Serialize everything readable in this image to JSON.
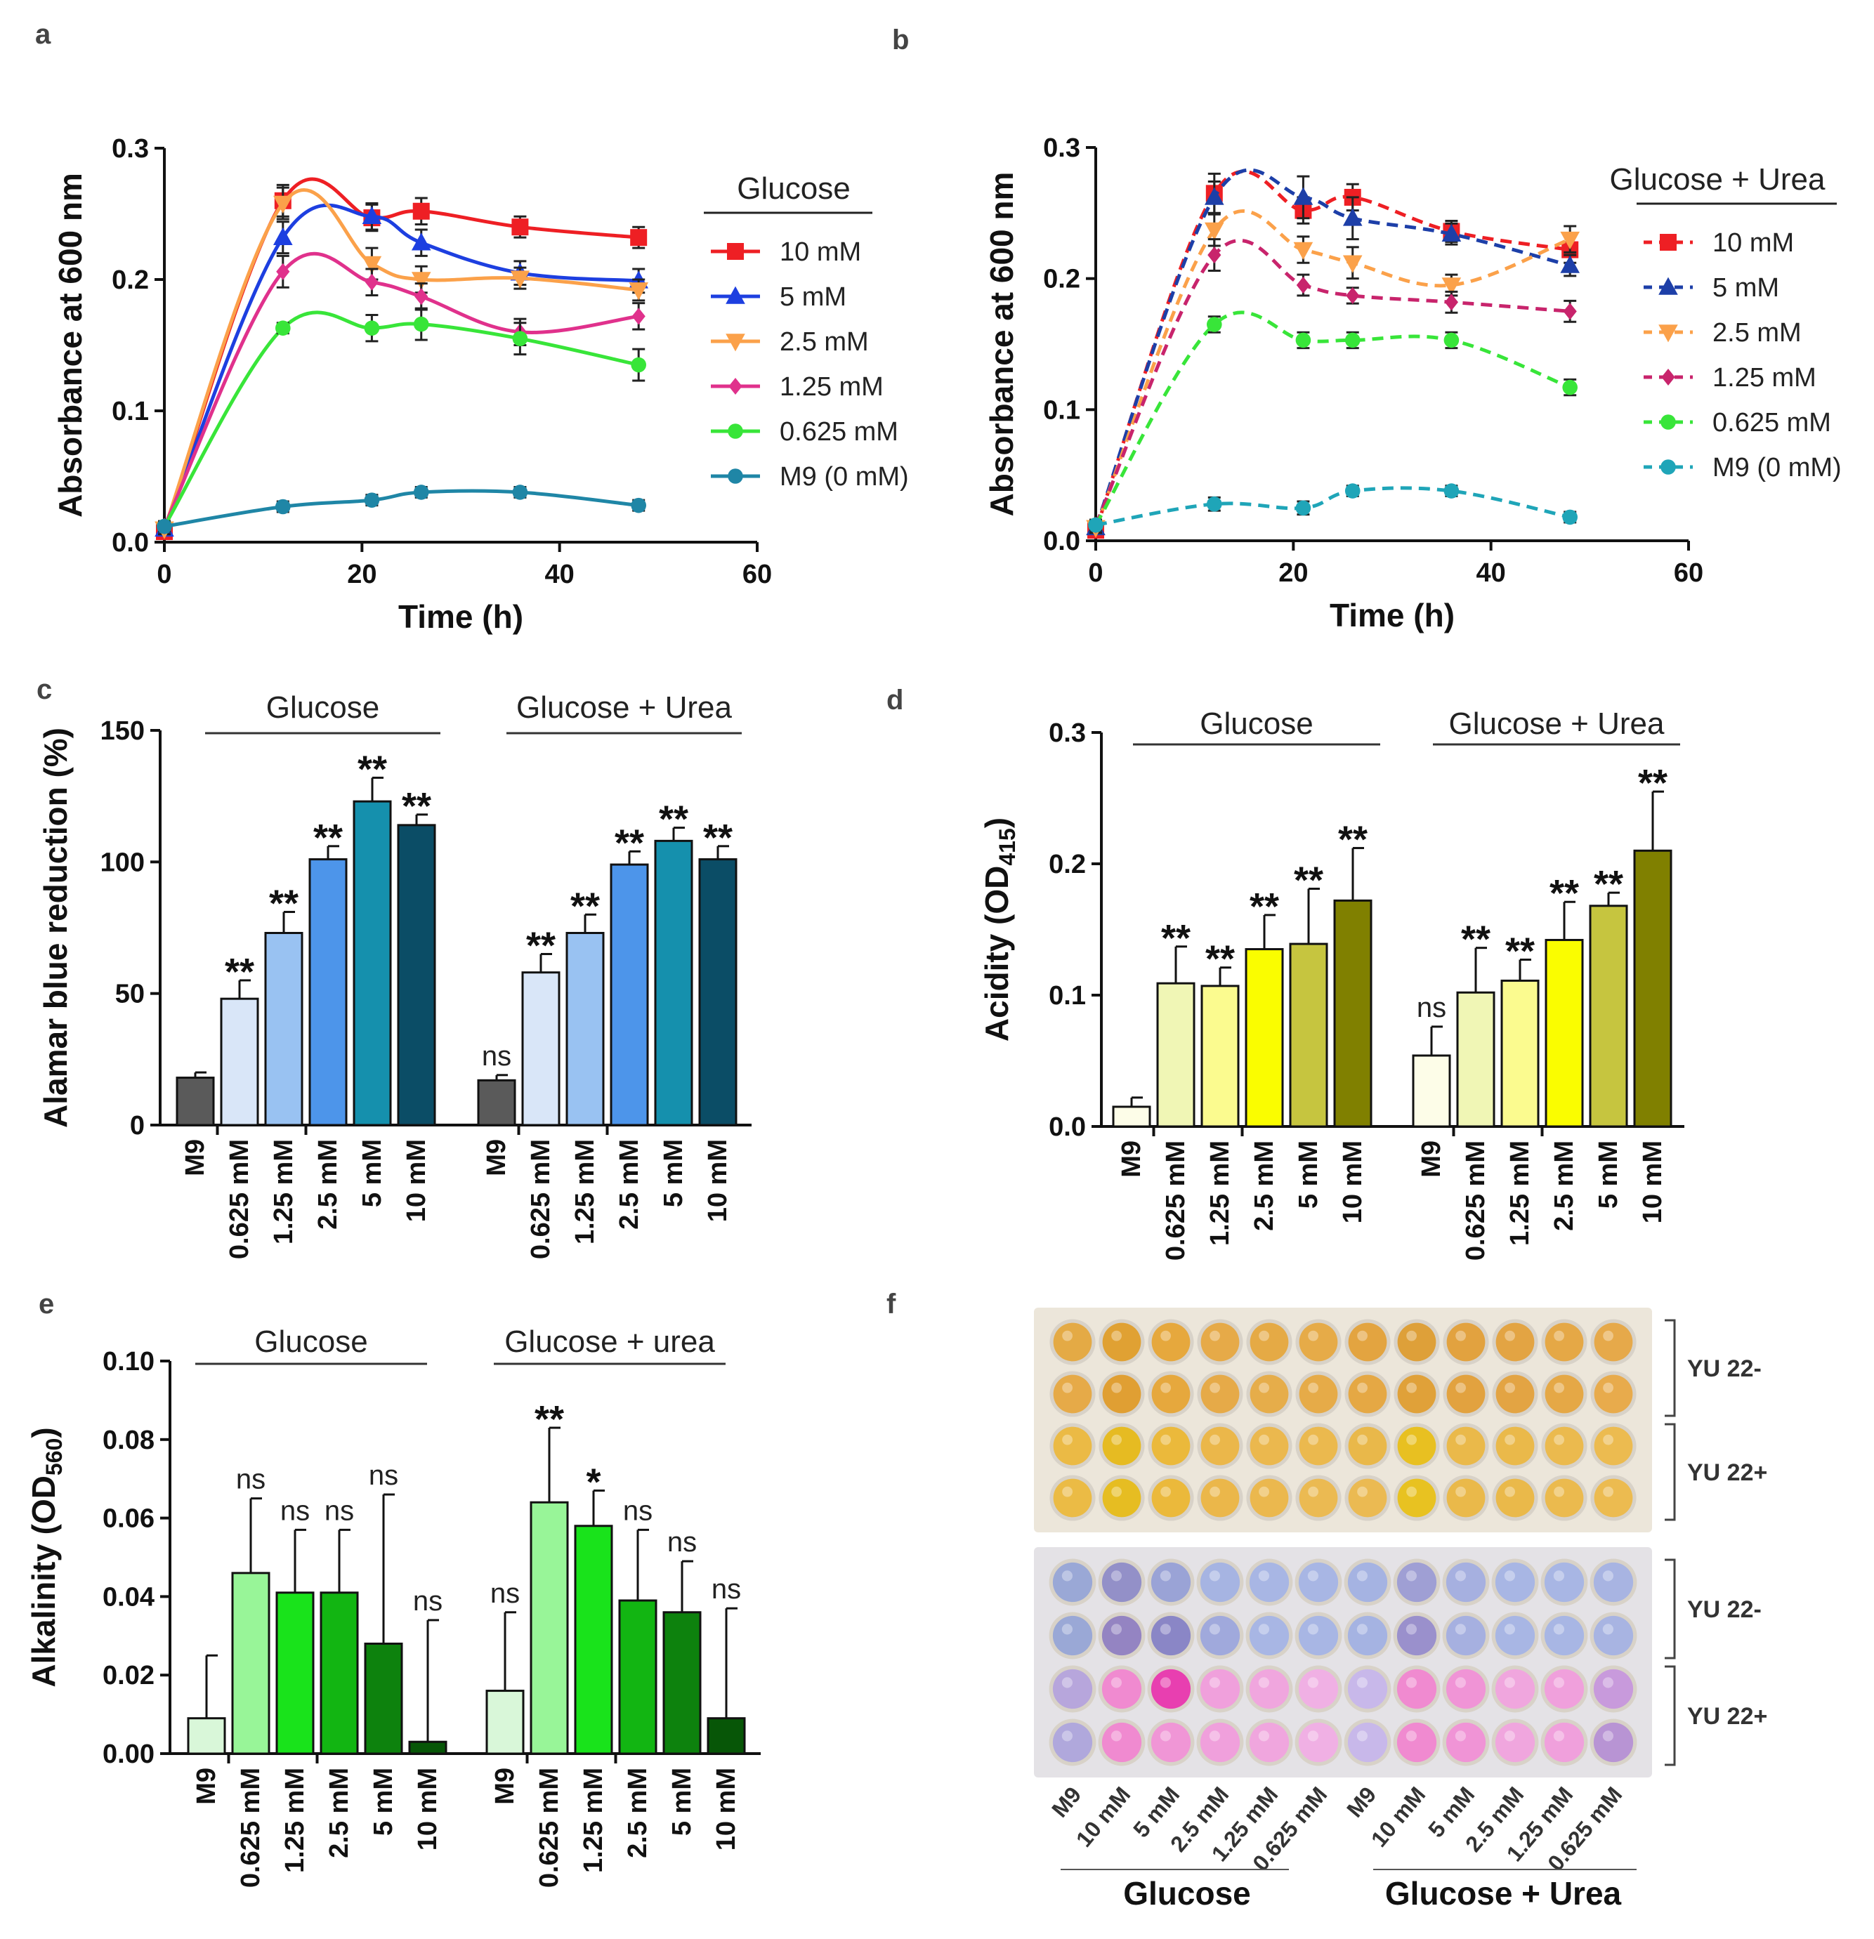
{
  "panel_letters": {
    "a": "a",
    "b": "b",
    "c": "c",
    "d": "d",
    "e": "e",
    "f": "f"
  },
  "colors": {
    "lines": {
      "10 mM": "#ee1f24",
      "5 mM": "#1d3fe0",
      "2.5 mM": "#fba14a",
      "1.25 mM": "#e0318c",
      "0.625 mM": "#38e539",
      "M9 (0 mM)": "#1f86a6"
    },
    "linesB": {
      "10 mM": "#ee1f24",
      "5 mM": "#1d3fa8",
      "2.5 mM": "#fba14a",
      "1.25 mM": "#c8246c",
      "0.625 mM": "#38e539",
      "M9 (0 mM)": "#1fa5b8"
    },
    "barsC": [
      "#5a5a5a",
      "#d9e6f8",
      "#99c2f2",
      "#4d95ea",
      "#1590ad",
      "#0b4d66"
    ],
    "barsD": [
      "#fdfde8",
      "#f0f6b5",
      "#fbfb8f",
      "#fafd00",
      "#c6c53f",
      "#808000"
    ],
    "barsE": [
      "#d9f7d9",
      "#98f598",
      "#19e31b",
      "#12b512",
      "#0d820d",
      "#075607"
    ]
  },
  "chart_data": [
    {
      "id": "a",
      "type": "line",
      "ylabel": "Absorbance at 600 nm",
      "xlabel": "Time (h)",
      "xlim": [
        0,
        60
      ],
      "ylim": [
        0,
        0.3
      ],
      "xticks": [
        "0",
        "20",
        "40",
        "60"
      ],
      "yticks": [
        "0.0",
        "0.1",
        "0.2",
        "0.3"
      ],
      "legend_title": "Glucose",
      "line_style": "solid",
      "x": [
        0,
        12,
        21,
        26,
        36,
        48
      ],
      "series": [
        {
          "name": "10 mM",
          "marker": "square",
          "values": [
            0.008,
            0.26,
            0.247,
            0.252,
            0.24,
            0.232
          ],
          "errors": [
            0.004,
            0.012,
            0.01,
            0.01,
            0.008,
            0.008
          ]
        },
        {
          "name": "5 mM",
          "marker": "triangle",
          "values": [
            0.01,
            0.232,
            0.248,
            0.228,
            0.205,
            0.199
          ],
          "errors": [
            0.004,
            0.012,
            0.01,
            0.01,
            0.009,
            0.009
          ]
        },
        {
          "name": "2.5 mM",
          "marker": "triangle-down",
          "values": [
            0.01,
            0.258,
            0.212,
            0.2,
            0.201,
            0.192
          ],
          "errors": [
            0.004,
            0.012,
            0.012,
            0.01,
            0.008,
            0.008
          ]
        },
        {
          "name": "1.25 mM",
          "marker": "diamond",
          "values": [
            0.012,
            0.206,
            0.198,
            0.187,
            0.16,
            0.172
          ],
          "errors": [
            0.004,
            0.012,
            0.01,
            0.01,
            0.01,
            0.01
          ]
        },
        {
          "name": "0.625 mM",
          "marker": "circle",
          "values": [
            0.012,
            0.163,
            0.163,
            0.166,
            0.155,
            0.135
          ],
          "errors": [
            0.004,
            0.004,
            0.01,
            0.012,
            0.012,
            0.012
          ]
        },
        {
          "name": "M9 (0 mM)",
          "marker": "circle",
          "values": [
            0.012,
            0.027,
            0.032,
            0.038,
            0.038,
            0.028
          ],
          "errors": [
            0.003,
            0.004,
            0.004,
            0.004,
            0.004,
            0.004
          ]
        }
      ]
    },
    {
      "id": "b",
      "type": "line",
      "ylabel": "Absorbance at 600 nm",
      "xlabel": "Time (h)",
      "xlim": [
        0,
        60
      ],
      "ylim": [
        0,
        0.3
      ],
      "xticks": [
        "0",
        "20",
        "40",
        "60"
      ],
      "yticks": [
        "0.0",
        "0.1",
        "0.2",
        "0.3"
      ],
      "legend_title": "Glucose  + Urea",
      "line_style": "dashed",
      "x": [
        0,
        12,
        21,
        26,
        36,
        48
      ],
      "series": [
        {
          "name": "10 mM",
          "marker": "square",
          "values": [
            0.008,
            0.265,
            0.252,
            0.262,
            0.236,
            0.222
          ],
          "errors": [
            0.004,
            0.015,
            0.01,
            0.01,
            0.008,
            0.01
          ]
        },
        {
          "name": "5 mM",
          "marker": "triangle",
          "values": [
            0.01,
            0.262,
            0.262,
            0.246,
            0.234,
            0.21
          ],
          "errors": [
            0.004,
            0.012,
            0.016,
            0.016,
            0.008,
            0.008
          ]
        },
        {
          "name": "2.5 mM",
          "marker": "triangle-down",
          "values": [
            0.01,
            0.237,
            0.222,
            0.212,
            0.195,
            0.23
          ],
          "errors": [
            0.004,
            0.012,
            0.01,
            0.012,
            0.008,
            0.01
          ]
        },
        {
          "name": "1.25 mM",
          "marker": "diamond",
          "values": [
            0.012,
            0.218,
            0.195,
            0.187,
            0.182,
            0.175
          ],
          "errors": [
            0.004,
            0.012,
            0.008,
            0.006,
            0.008,
            0.008
          ]
        },
        {
          "name": "0.625 mM",
          "marker": "circle",
          "values": [
            0.012,
            0.165,
            0.153,
            0.153,
            0.153,
            0.117
          ],
          "errors": [
            0.004,
            0.006,
            0.006,
            0.006,
            0.006,
            0.006
          ]
        },
        {
          "name": "M9 (0 mM)",
          "marker": "circle",
          "values": [
            0.012,
            0.028,
            0.025,
            0.038,
            0.038,
            0.018
          ],
          "errors": [
            0.003,
            0.005,
            0.005,
            0.004,
            0.004,
            0.004
          ]
        }
      ]
    },
    {
      "id": "c",
      "type": "bar",
      "ylabel": "Alamar blue reduction (%)",
      "ylim": [
        0,
        150
      ],
      "yticks": [
        "0",
        "50",
        "100",
        "150"
      ],
      "categories": [
        "M9",
        "0.625 mM",
        "1.25 mM",
        "2.5 mM",
        "5 mM",
        "10 mM"
      ],
      "groups": [
        {
          "label": "Glucose",
          "values": [
            18,
            48,
            73,
            101,
            123,
            114
          ],
          "errors": [
            2,
            7,
            8,
            5,
            9,
            4
          ],
          "sig": [
            "",
            "**",
            "**",
            "**",
            "**",
            "**"
          ]
        },
        {
          "label": "Glucose + Urea",
          "values": [
            17,
            58,
            73,
            99,
            108,
            101
          ],
          "errors": [
            2,
            7,
            7,
            5,
            5,
            5
          ],
          "sig": [
            "ns",
            "**",
            "**",
            "**",
            "**",
            "**"
          ]
        }
      ]
    },
    {
      "id": "d",
      "type": "bar",
      "ylabel": "Acidity (OD415)",
      "ylabel_main": "Acidity (OD",
      "ylabel_sub": "415",
      "ylabel_end": ")",
      "ylim": [
        0,
        0.3
      ],
      "yticks": [
        "0.0",
        "0.1",
        "0.2",
        "0.3"
      ],
      "categories": [
        "M9",
        "0.625 mM",
        "1.25 mM",
        "2.5 mM",
        "5 mM",
        "10 mM"
      ],
      "groups": [
        {
          "label": "Glucose",
          "values": [
            0.015,
            0.109,
            0.107,
            0.135,
            0.139,
            0.172
          ],
          "errors": [
            0.007,
            0.028,
            0.014,
            0.026,
            0.042,
            0.04
          ],
          "sig": [
            "",
            "**",
            "**",
            "**",
            "**",
            "**"
          ]
        },
        {
          "label": "Glucose + Urea",
          "values": [
            0.054,
            0.102,
            0.111,
            0.142,
            0.168,
            0.21
          ],
          "errors": [
            0.022,
            0.034,
            0.016,
            0.029,
            0.01,
            0.045
          ],
          "sig": [
            "ns",
            "**",
            "**",
            "**",
            "**",
            "**"
          ]
        }
      ]
    },
    {
      "id": "e",
      "type": "bar",
      "ylabel": "Alkalinity  (OD560)",
      "ylabel_main": "Alkalinity  (OD",
      "ylabel_sub": "560",
      "ylabel_end": ")",
      "ylim": [
        0,
        0.1
      ],
      "yticks": [
        "0.00",
        "0.02",
        "0.04",
        "0.06",
        "0.08",
        "0.10"
      ],
      "categories": [
        "M9",
        "0.625 mM",
        "1.25 mM",
        "2.5 mM",
        "5 mM",
        "10 mM"
      ],
      "groups": [
        {
          "label": "Glucose",
          "values": [
            0.009,
            0.046,
            0.041,
            0.041,
            0.028,
            0.003
          ],
          "errors": [
            0.016,
            0.019,
            0.016,
            0.016,
            0.038,
            0.031
          ],
          "sig": [
            "",
            "ns",
            "ns",
            "ns",
            "ns",
            "ns"
          ]
        },
        {
          "label": "Glucose + urea",
          "values": [
            0.016,
            0.064,
            0.058,
            0.039,
            0.036,
            0.009
          ],
          "errors": [
            0.02,
            0.019,
            0.009,
            0.018,
            0.013,
            0.028
          ],
          "sig": [
            "ns",
            "**",
            "*",
            "ns",
            "ns",
            "ns"
          ]
        }
      ]
    }
  ],
  "plate": {
    "row_group_labels_top": [
      "YU 22-",
      "YU 22+"
    ],
    "row_group_labels_bottom": [
      "YU 22-",
      "YU 22+"
    ],
    "column_labels": [
      "M9",
      "10 mM",
      "5 mM",
      "2.5 mM",
      "1.25 mM",
      "0.625 mM",
      "M9",
      "10 mM",
      "5 mM",
      "2.5 mM",
      "1.25 mM",
      "0.625 mM"
    ],
    "group_labels": [
      "Glucose",
      "Glucose + Urea"
    ],
    "top_well_colors": [
      [
        "#e4aa45",
        "#e0a133",
        "#e6a83d",
        "#e6aa48",
        "#e5aa45",
        "#e6ab48",
        "#e3a440",
        "#dea039",
        "#e2a23f",
        "#e3a443",
        "#e5a846",
        "#e6a94a"
      ],
      [
        "#e6aa48",
        "#e09f33",
        "#e6a83d",
        "#e6aa48",
        "#e6ad4a",
        "#e6ab48",
        "#e5a844",
        "#e0a139",
        "#e2a23f",
        "#e3a443",
        "#e5a846",
        "#e8ab4c"
      ],
      [
        "#ebba45",
        "#e6bb22",
        "#ebb93b",
        "#ebb74a",
        "#ebb84e",
        "#ebb94e",
        "#e9b84a",
        "#e8c021",
        "#eab94a",
        "#eab94a",
        "#ebba4e",
        "#ecbb50"
      ],
      [
        "#ebbb45",
        "#e6bd22",
        "#ebb93b",
        "#ebb74a",
        "#ebb84e",
        "#ebba52",
        "#ebba52",
        "#e8c221",
        "#eab94a",
        "#eab94a",
        "#ebba4e",
        "#ecbb50"
      ]
    ],
    "bottom_well_colors": [
      [
        "#9aa8d6",
        "#9390c8",
        "#9aa3d6",
        "#a6b4e2",
        "#a8b6e4",
        "#a8b6e4",
        "#a5b3e2",
        "#9f9fd4",
        "#a6b0e0",
        "#a8b6e4",
        "#a8b6e4",
        "#a8b4e2"
      ],
      [
        "#9aa8d6",
        "#9484c2",
        "#8a86c6",
        "#a0a9dc",
        "#a8b6e4",
        "#a8b6e4",
        "#a5b3e2",
        "#9a90cc",
        "#a6b0e0",
        "#a8b6e4",
        "#a8b6e4",
        "#a8b4e2"
      ],
      [
        "#b7a6dc",
        "#f08ad0",
        "#e83fb0",
        "#f0a0dc",
        "#f0a6de",
        "#f0b0e4",
        "#c8b8ea",
        "#f08ad0",
        "#f094d6",
        "#f0a6de",
        "#f0a0dc",
        "#c89adc"
      ],
      [
        "#b0a8dc",
        "#f08ad0",
        "#f096d6",
        "#f0a0dc",
        "#f0a6de",
        "#f0b0e4",
        "#c8b8ea",
        "#f08ad0",
        "#f094d6",
        "#f0a6de",
        "#f0a0dc",
        "#b894d4"
      ]
    ]
  }
}
